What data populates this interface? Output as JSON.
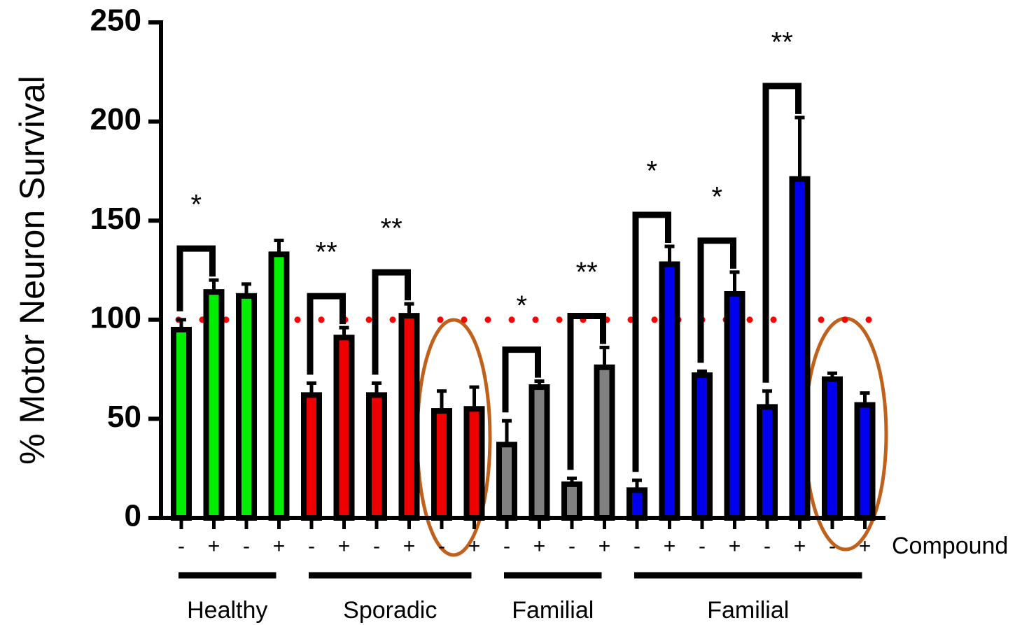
{
  "chart_data": {
    "type": "bar",
    "y_label": "% Motor Neuron Survival",
    "x_label": "Compound",
    "categories": [
      "-",
      "+",
      "-",
      "+",
      "-",
      "+",
      "-",
      "+",
      "-",
      "+",
      "-",
      "+",
      "-",
      "+",
      "-",
      "+",
      "-",
      "+",
      "-",
      "+",
      "-",
      "+"
    ],
    "series": [
      {
        "name": "Healthy",
        "color": "#00ee00",
        "values": [
          95,
          114,
          112,
          133,
          null,
          null,
          null,
          null,
          null,
          null,
          null,
          null,
          null,
          null,
          null,
          null,
          null,
          null,
          null,
          null,
          null,
          null
        ],
        "errors": [
          5,
          6,
          6,
          7,
          null,
          null,
          null,
          null,
          null,
          null,
          null,
          null,
          null,
          null,
          null,
          null,
          null,
          null,
          null,
          null,
          null,
          null
        ]
      },
      {
        "name": "Sporadic",
        "color": "#ee0000",
        "values": [
          null,
          null,
          null,
          null,
          62,
          91,
          62,
          102,
          54,
          55,
          null,
          null,
          null,
          null,
          null,
          null,
          null,
          null,
          null,
          null,
          null,
          null
        ],
        "errors": [
          null,
          null,
          null,
          null,
          6,
          5,
          6,
          6,
          10,
          11,
          null,
          null,
          null,
          null,
          null,
          null,
          null,
          null,
          null,
          null,
          null,
          null
        ]
      },
      {
        "name": "Familial",
        "color": "#808080",
        "values": [
          null,
          null,
          null,
          null,
          null,
          null,
          null,
          null,
          null,
          null,
          37,
          66,
          17,
          76,
          null,
          null,
          null,
          null,
          null,
          null,
          null,
          null
        ],
        "errors": [
          null,
          null,
          null,
          null,
          null,
          null,
          null,
          null,
          null,
          null,
          12,
          3,
          3,
          10,
          null,
          null,
          null,
          null,
          null,
          null,
          null,
          null
        ]
      },
      {
        "name": "Familial",
        "color": "#0000ee",
        "values": [
          null,
          null,
          null,
          null,
          null,
          null,
          null,
          null,
          null,
          null,
          null,
          null,
          null,
          null,
          14,
          128,
          72,
          113,
          56,
          171,
          70,
          57
        ],
        "errors": [
          null,
          null,
          null,
          null,
          null,
          null,
          null,
          null,
          null,
          null,
          null,
          null,
          null,
          null,
          5,
          9,
          2,
          11,
          8,
          31,
          3,
          6
        ]
      }
    ],
    "ylim": [
      0,
      250
    ],
    "yticks": [
      0,
      50,
      100,
      150,
      200,
      250
    ],
    "reference_line": {
      "value": 100,
      "color": "#ff0000"
    },
    "annotations": [
      {
        "text": "*",
        "from": 0,
        "to": 1
      },
      {
        "text": "**",
        "from": 4,
        "to": 5
      },
      {
        "text": "**",
        "from": 6,
        "to": 7
      },
      {
        "text": "*",
        "from": 10,
        "to": 11
      },
      {
        "text": "**",
        "from": 12,
        "to": 13
      },
      {
        "text": "*",
        "from": 14,
        "to": 15
      },
      {
        "text": "*",
        "from": 16,
        "to": 17
      },
      {
        "text": "**",
        "from": 18,
        "to": 19
      }
    ]
  }
}
